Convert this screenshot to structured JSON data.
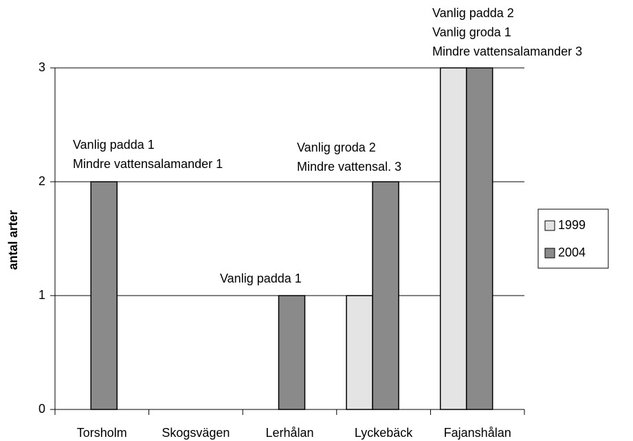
{
  "chart_data": {
    "type": "bar",
    "y_label": "antal arter",
    "categories": [
      "Torsholm",
      "Skogsvägen",
      "Lerhålan",
      "Lyckebäck",
      "Fajanshålan"
    ],
    "series": [
      {
        "name": "1999",
        "color": "#e4e4e4",
        "values": [
          0,
          0,
          0,
          1,
          3
        ]
      },
      {
        "name": "2004",
        "color": "#8a8a8a",
        "values": [
          2,
          0,
          1,
          2,
          3
        ]
      }
    ],
    "ylim": [
      0,
      3
    ],
    "yticks": [
      0,
      1,
      2,
      3
    ],
    "grid": true,
    "legend": "right",
    "annotations": [
      {
        "lines": [
          "Vanlig padda 1",
          "Mindre vattensalamander 1"
        ]
      },
      {
        "lines": [
          "Vanlig padda 1"
        ]
      },
      {
        "lines": [
          "Vanlig groda 2",
          "Mindre vattensal. 3"
        ]
      },
      {
        "lines": [
          "Vanlig padda 2",
          "Vanlig groda 1",
          "Mindre vattensalamander 3"
        ]
      }
    ]
  }
}
